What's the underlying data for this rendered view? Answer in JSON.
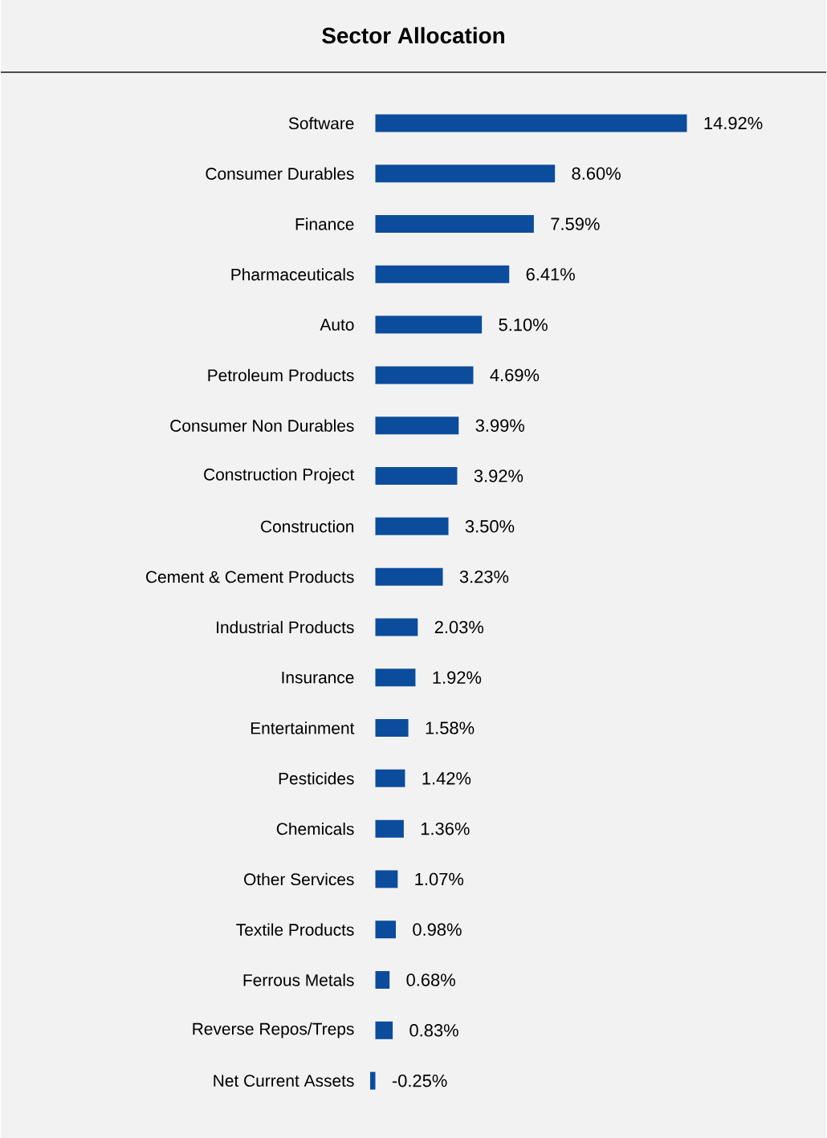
{
  "chart_data": {
    "type": "bar",
    "title": "Sector Allocation",
    "orientation": "horizontal",
    "color": "#0b4c9c",
    "categories": [
      "Software",
      "Consumer Durables",
      "Finance",
      "Pharmaceuticals",
      "Auto",
      "Petroleum Products",
      "Consumer Non Durables",
      "Construction Project",
      "Construction",
      "Cement & Cement Products",
      "Industrial Products",
      "Insurance",
      "Entertainment",
      "Pesticides",
      "Chemicals",
      "Other Services",
      "Textile Products",
      "Ferrous Metals",
      "Reverse Repos/Treps",
      "Net Current Assets"
    ],
    "values": [
      14.92,
      8.6,
      7.59,
      6.41,
      5.1,
      4.69,
      3.99,
      3.92,
      3.5,
      3.23,
      2.03,
      1.92,
      1.58,
      1.42,
      1.36,
      1.07,
      0.98,
      0.68,
      0.83,
      -0.25
    ],
    "value_labels": [
      "14.92%",
      "8.60%",
      "7.59%",
      "6.41%",
      "5.10%",
      "4.69%",
      "3.99%",
      "3.92%",
      "3.50%",
      "3.23%",
      "2.03%",
      "1.92%",
      "1.58%",
      "1.42%",
      "1.36%",
      "1.07%",
      "0.98%",
      "0.68%",
      "0.83%",
      "-0.25%"
    ]
  }
}
